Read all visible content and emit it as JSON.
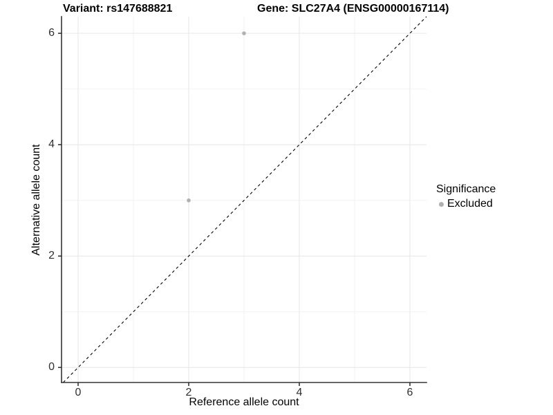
{
  "chart_data": {
    "type": "scatter",
    "title_left": "Variant: rs147688821",
    "title_right": "Gene: SLC27A4 (ENSG00000167114)",
    "xlabel": "Reference allele count",
    "ylabel": "Alternative allele count",
    "xlim": [
      -0.3,
      6.3
    ],
    "ylim": [
      -0.27,
      6.3
    ],
    "x_ticks": [
      0,
      2,
      4,
      6
    ],
    "y_ticks": [
      0,
      2,
      4,
      6
    ],
    "x_minor_ticks": [
      1,
      3,
      5
    ],
    "y_minor_ticks": [
      1,
      3,
      5
    ],
    "grid": true,
    "series": [
      {
        "name": "Excluded",
        "color": "#b0b0b0",
        "points": [
          {
            "x": 3,
            "y": 6
          },
          {
            "x": 2,
            "y": 3
          }
        ]
      }
    ],
    "reference_line": {
      "type": "identity",
      "equation": "y = x",
      "style": "dashed",
      "color": "#000000"
    },
    "legend": {
      "title": "Significance",
      "position": "right",
      "items": [
        {
          "label": "Excluded",
          "color": "#b0b0b0"
        }
      ]
    },
    "colors": {
      "major_grid": "#e6e6e6",
      "minor_grid": "#f2f2f2",
      "axis_line": "#333333",
      "tick_label": "#303030",
      "title": "#000000",
      "background": "#ffffff"
    }
  }
}
